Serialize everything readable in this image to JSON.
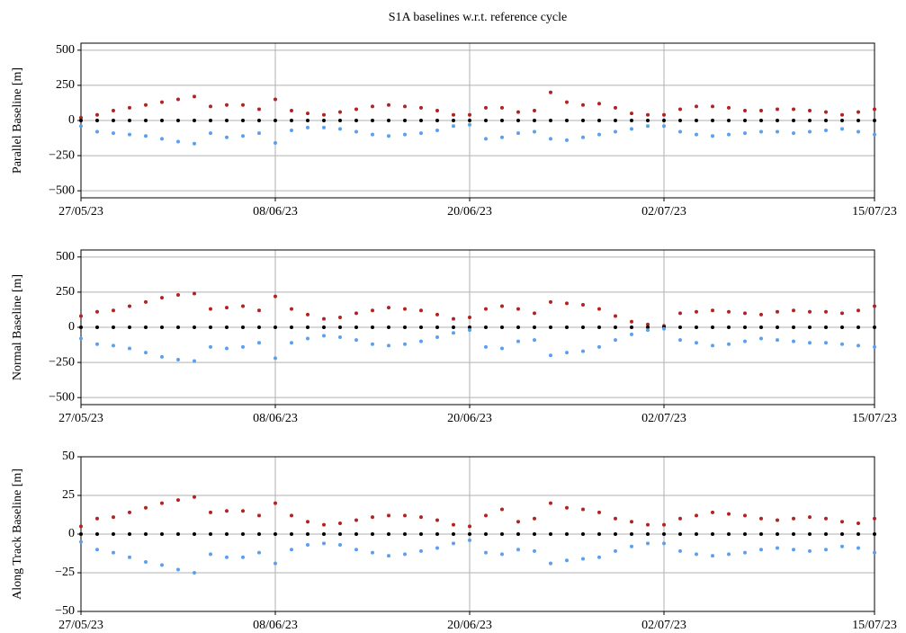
{
  "title": "S1A baselines w.r.t. reference cycle",
  "chart_data": [
    {
      "type": "scatter",
      "ylabel": "Parallel Baseline [m]",
      "x": [
        "27/05/23",
        "28/05/23",
        "29/05/23",
        "30/05/23",
        "31/05/23",
        "01/06/23",
        "02/06/23",
        "03/06/23",
        "04/06/23",
        "05/06/23",
        "06/06/23",
        "07/06/23",
        "08/06/23",
        "09/06/23",
        "10/06/23",
        "11/06/23",
        "12/06/23",
        "13/06/23",
        "14/06/23",
        "15/06/23",
        "16/06/23",
        "17/06/23",
        "18/06/23",
        "19/06/23",
        "20/06/23",
        "21/06/23",
        "22/06/23",
        "23/06/23",
        "24/06/23",
        "25/06/23",
        "26/06/23",
        "27/06/23",
        "28/06/23",
        "29/06/23",
        "30/06/23",
        "01/07/23",
        "02/07/23",
        "03/07/23",
        "04/07/23",
        "05/07/23",
        "06/07/23",
        "07/07/23",
        "08/07/23",
        "09/07/23",
        "10/07/23",
        "11/07/23",
        "12/07/23",
        "13/07/23",
        "14/07/23",
        "15/07/23"
      ],
      "series": [
        {
          "color": "#b22222",
          "values": [
            20,
            40,
            70,
            90,
            110,
            130,
            150,
            170,
            100,
            110,
            110,
            80,
            150,
            70,
            50,
            40,
            60,
            80,
            100,
            110,
            100,
            90,
            70,
            40,
            40,
            90,
            90,
            60,
            70,
            200,
            130,
            110,
            120,
            90,
            50,
            40,
            40,
            80,
            100,
            100,
            90,
            70,
            70,
            80,
            80,
            70,
            60,
            40,
            60,
            80
          ]
        },
        {
          "color": "#000000",
          "values": [
            0,
            0,
            0,
            0,
            0,
            0,
            0,
            0,
            0,
            0,
            0,
            0,
            0,
            0,
            0,
            0,
            0,
            0,
            0,
            0,
            0,
            0,
            0,
            0,
            0,
            0,
            0,
            0,
            0,
            0,
            0,
            0,
            0,
            0,
            0,
            0,
            0,
            0,
            0,
            0,
            0,
            0,
            0,
            0,
            0,
            0,
            0,
            0,
            0,
            0
          ]
        },
        {
          "color": "#5aa0f0",
          "values": [
            -40,
            -80,
            -90,
            -100,
            -110,
            -130,
            -150,
            -165,
            -90,
            -120,
            -110,
            -90,
            -160,
            -70,
            -50,
            -50,
            -60,
            -80,
            -100,
            -110,
            -100,
            -90,
            -70,
            -40,
            -30,
            -130,
            -120,
            -90,
            -80,
            -130,
            -140,
            -120,
            -100,
            -80,
            -60,
            -40,
            -40,
            -80,
            -100,
            -110,
            -100,
            -90,
            -80,
            -80,
            -90,
            -80,
            -70,
            -60,
            -80,
            -100
          ]
        }
      ],
      "xlim": [
        "27/05/23",
        "15/07/23"
      ],
      "xticks": [
        "27/05/23",
        "08/06/23",
        "20/06/23",
        "02/07/23",
        "15/07/23"
      ],
      "ylim": [
        -550,
        550
      ],
      "yticks": [
        {
          "value": -500,
          "label": "−500"
        },
        {
          "value": -250,
          "label": "−250"
        },
        0,
        250,
        500
      ],
      "grid": true
    },
    {
      "type": "scatter",
      "ylabel": "Normal Baseline [m]",
      "x": [
        "27/05/23",
        "28/05/23",
        "29/05/23",
        "30/05/23",
        "31/05/23",
        "01/06/23",
        "02/06/23",
        "03/06/23",
        "04/06/23",
        "05/06/23",
        "06/06/23",
        "07/06/23",
        "08/06/23",
        "09/06/23",
        "10/06/23",
        "11/06/23",
        "12/06/23",
        "13/06/23",
        "14/06/23",
        "15/06/23",
        "16/06/23",
        "17/06/23",
        "18/06/23",
        "19/06/23",
        "20/06/23",
        "21/06/23",
        "22/06/23",
        "23/06/23",
        "24/06/23",
        "25/06/23",
        "26/06/23",
        "27/06/23",
        "28/06/23",
        "29/06/23",
        "30/06/23",
        "01/07/23",
        "02/07/23",
        "03/07/23",
        "04/07/23",
        "05/07/23",
        "06/07/23",
        "07/07/23",
        "08/07/23",
        "09/07/23",
        "10/07/23",
        "11/07/23",
        "12/07/23",
        "13/07/23",
        "14/07/23",
        "15/07/23"
      ],
      "series": [
        {
          "color": "#b22222",
          "values": [
            80,
            110,
            120,
            150,
            180,
            210,
            230,
            240,
            130,
            140,
            150,
            120,
            220,
            130,
            90,
            60,
            70,
            100,
            120,
            140,
            130,
            120,
            90,
            60,
            70,
            130,
            150,
            130,
            100,
            180,
            170,
            160,
            130,
            80,
            40,
            20,
            10,
            100,
            110,
            120,
            110,
            100,
            90,
            110,
            120,
            110,
            110,
            100,
            120,
            150
          ]
        },
        {
          "color": "#000000",
          "values": [
            0,
            0,
            0,
            0,
            0,
            0,
            0,
            0,
            0,
            0,
            0,
            0,
            0,
            0,
            0,
            0,
            0,
            0,
            0,
            0,
            0,
            0,
            0,
            0,
            0,
            0,
            0,
            0,
            0,
            0,
            0,
            0,
            0,
            0,
            0,
            0,
            0,
            0,
            0,
            0,
            0,
            0,
            0,
            0,
            0,
            0,
            0,
            0,
            0,
            0
          ]
        },
        {
          "color": "#5aa0f0",
          "values": [
            -80,
            -120,
            -130,
            -150,
            -180,
            -210,
            -230,
            -240,
            -140,
            -150,
            -140,
            -110,
            -220,
            -110,
            -80,
            -60,
            -70,
            -90,
            -120,
            -130,
            -120,
            -100,
            -70,
            -40,
            -20,
            -140,
            -150,
            -100,
            -90,
            -200,
            -180,
            -170,
            -140,
            -90,
            -50,
            -20,
            -10,
            -90,
            -110,
            -130,
            -120,
            -100,
            -80,
            -90,
            -100,
            -110,
            -110,
            -120,
            -130,
            -140
          ]
        }
      ],
      "xlim": [
        "27/05/23",
        "15/07/23"
      ],
      "xticks": [
        "27/05/23",
        "08/06/23",
        "20/06/23",
        "02/07/23",
        "15/07/23"
      ],
      "ylim": [
        -550,
        550
      ],
      "yticks": [
        {
          "value": -500,
          "label": "−500"
        },
        {
          "value": -250,
          "label": "−250"
        },
        0,
        250,
        500
      ],
      "grid": true
    },
    {
      "type": "scatter",
      "ylabel": "Along Track Baseline [m]",
      "x": [
        "27/05/23",
        "28/05/23",
        "29/05/23",
        "30/05/23",
        "31/05/23",
        "01/06/23",
        "02/06/23",
        "03/06/23",
        "04/06/23",
        "05/06/23",
        "06/06/23",
        "07/06/23",
        "08/06/23",
        "09/06/23",
        "10/06/23",
        "11/06/23",
        "12/06/23",
        "13/06/23",
        "14/06/23",
        "15/06/23",
        "16/06/23",
        "17/06/23",
        "18/06/23",
        "19/06/23",
        "20/06/23",
        "21/06/23",
        "22/06/23",
        "23/06/23",
        "24/06/23",
        "25/06/23",
        "26/06/23",
        "27/06/23",
        "28/06/23",
        "29/06/23",
        "30/06/23",
        "01/07/23",
        "02/07/23",
        "03/07/23",
        "04/07/23",
        "05/07/23",
        "06/07/23",
        "07/07/23",
        "08/07/23",
        "09/07/23",
        "10/07/23",
        "11/07/23",
        "12/07/23",
        "13/07/23",
        "14/07/23",
        "15/07/23"
      ],
      "series": [
        {
          "color": "#b22222",
          "values": [
            5,
            10,
            11,
            14,
            17,
            20,
            22,
            24,
            14,
            15,
            15,
            12,
            20,
            12,
            8,
            6,
            7,
            9,
            11,
            12,
            12,
            11,
            9,
            6,
            5,
            12,
            16,
            8,
            10,
            20,
            17,
            16,
            14,
            10,
            8,
            6,
            6,
            10,
            12,
            14,
            13,
            12,
            10,
            9,
            10,
            11,
            10,
            8,
            7,
            10
          ]
        },
        {
          "color": "#000000",
          "values": [
            0,
            0,
            0,
            0,
            0,
            0,
            0,
            0,
            0,
            0,
            0,
            0,
            0,
            0,
            0,
            0,
            0,
            0,
            0,
            0,
            0,
            0,
            0,
            0,
            0,
            0,
            0,
            0,
            0,
            0,
            0,
            0,
            0,
            0,
            0,
            0,
            0,
            0,
            0,
            0,
            0,
            0,
            0,
            0,
            0,
            0,
            0,
            0,
            0,
            0
          ]
        },
        {
          "color": "#5aa0f0",
          "values": [
            -5,
            -10,
            -12,
            -15,
            -18,
            -20,
            -23,
            -25,
            -13,
            -15,
            -15,
            -12,
            -19,
            -10,
            -7,
            -6,
            -7,
            -10,
            -12,
            -14,
            -13,
            -11,
            -9,
            -6,
            -4,
            -12,
            -13,
            -10,
            -11,
            -19,
            -17,
            -16,
            -15,
            -11,
            -8,
            -6,
            -6,
            -11,
            -13,
            -14,
            -13,
            -12,
            -10,
            -9,
            -10,
            -11,
            -10,
            -8,
            -9,
            -12
          ]
        }
      ],
      "xlim": [
        "27/05/23",
        "15/07/23"
      ],
      "xticks": [
        "27/05/23",
        "08/06/23",
        "20/06/23",
        "02/07/23",
        "15/07/23"
      ],
      "ylim": [
        -50,
        50
      ],
      "yticks": [
        {
          "value": -50,
          "label": "−50"
        },
        {
          "value": -25,
          "label": "−25"
        },
        0,
        25,
        50
      ],
      "grid": true
    }
  ]
}
